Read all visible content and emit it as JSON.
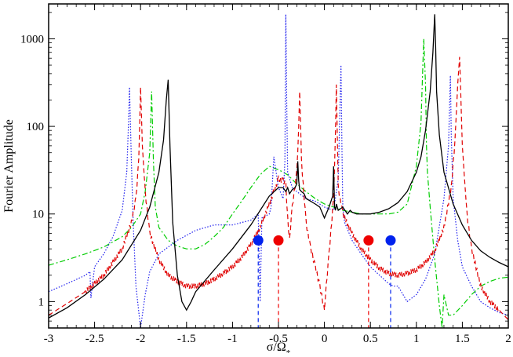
{
  "chart_data": {
    "type": "line",
    "xlabel": "σ/Ω*",
    "xlabel_main": "σ/Ω",
    "xlabel_sub": "*",
    "ylabel": "Fourier Amplitude",
    "yscale": "log",
    "xlim": [
      -3,
      2
    ],
    "ylim": [
      0.5,
      2500
    ],
    "x_ticks": [
      -3,
      -2.5,
      -2,
      -1.5,
      -1,
      -0.5,
      0,
      0.5,
      1,
      1.5,
      2
    ],
    "x_tick_labels": [
      "-3",
      "-2.5",
      "-2",
      "-1.5",
      "-1",
      "-0.5",
      "0",
      "0.5",
      "1",
      "1.5",
      "2"
    ],
    "y_ticks": [
      1,
      10,
      100,
      1000
    ],
    "y_tick_labels": [
      "1",
      "10",
      "100",
      "1000"
    ],
    "grid": false,
    "series": [
      {
        "style": "solid",
        "color": "#000000",
        "x": [
          -3,
          -2.8,
          -2.6,
          -2.4,
          -2.2,
          -2.0,
          -1.9,
          -1.8,
          -1.75,
          -1.72,
          -1.7,
          -1.68,
          -1.65,
          -1.6,
          -1.55,
          -1.5,
          -1.45,
          -1.4,
          -1.2,
          -1.0,
          -0.8,
          -0.6,
          -0.5,
          -0.45,
          -0.42,
          -0.4,
          -0.38,
          -0.35,
          -0.32,
          -0.3,
          -0.29,
          -0.28,
          -0.27,
          -0.25,
          -0.22,
          -0.2,
          -0.15,
          -0.1,
          -0.05,
          0.0,
          0.05,
          0.09,
          0.1,
          0.11,
          0.12,
          0.13,
          0.15,
          0.2,
          0.25,
          0.28,
          0.3,
          0.35,
          0.4,
          0.5,
          0.6,
          0.7,
          0.8,
          0.9,
          1.0,
          1.05,
          1.1,
          1.15,
          1.18,
          1.2,
          1.21,
          1.22,
          1.25,
          1.3,
          1.4,
          1.5,
          1.6,
          1.7,
          1.8,
          1.9,
          2.0
        ],
        "y": [
          0.65,
          0.85,
          1.2,
          1.8,
          3.0,
          6.5,
          12,
          30,
          70,
          200,
          340,
          60,
          8,
          2.0,
          1.0,
          0.8,
          1.0,
          1.3,
          2.3,
          4.0,
          7.5,
          16,
          20,
          20,
          18,
          20,
          17,
          19,
          20,
          22,
          40,
          24,
          19,
          18,
          17,
          15,
          14,
          13,
          12,
          9,
          12,
          16,
          35,
          12,
          11,
          13,
          11,
          12,
          10,
          11,
          10.5,
          10,
          10,
          10,
          10.5,
          11.5,
          13.5,
          18,
          30,
          45,
          90,
          250,
          700,
          1900,
          800,
          250,
          80,
          30,
          13,
          7.5,
          5.0,
          3.8,
          3.2,
          2.8,
          2.5
        ]
      },
      {
        "style": "dashed",
        "color": "#e00000",
        "noisy": true,
        "x": [
          -3,
          -2.8,
          -2.6,
          -2.4,
          -2.2,
          -2.1,
          -2.05,
          -2.02,
          -2.0,
          -1.98,
          -1.95,
          -1.9,
          -1.8,
          -1.7,
          -1.6,
          -1.5,
          -1.4,
          -1.3,
          -1.2,
          -1.1,
          -1.0,
          -0.9,
          -0.8,
          -0.7,
          -0.6,
          -0.55,
          -0.5,
          -0.45,
          -0.42,
          -0.4,
          -0.38,
          -0.35,
          -0.3,
          -0.28,
          -0.27,
          -0.26,
          -0.25,
          -0.2,
          -0.15,
          -0.1,
          -0.05,
          0.0,
          0.02,
          0.05,
          0.1,
          0.12,
          0.13,
          0.14,
          0.15,
          0.2,
          0.3,
          0.4,
          0.5,
          0.6,
          0.7,
          0.8,
          0.9,
          1.0,
          1.1,
          1.2,
          1.3,
          1.38,
          1.42,
          1.45,
          1.47,
          1.48,
          1.5,
          1.55,
          1.6,
          1.7,
          1.8,
          1.9,
          2.0
        ],
        "y": [
          0.7,
          0.95,
          1.3,
          2.0,
          4.0,
          8.0,
          15,
          40,
          280,
          60,
          18,
          6.0,
          3.0,
          2.0,
          1.7,
          1.5,
          1.5,
          1.6,
          1.8,
          2.1,
          2.5,
          3.2,
          4.5,
          7.0,
          13,
          18,
          25,
          24,
          22,
          9,
          5,
          12,
          30,
          100,
          250,
          120,
          40,
          8,
          4.0,
          2.5,
          1.5,
          0.8,
          1.5,
          3.5,
          15,
          90,
          300,
          80,
          20,
          10,
          6,
          4.0,
          3.0,
          2.4,
          2.1,
          2.0,
          2.1,
          2.3,
          2.8,
          3.8,
          7.0,
          20,
          70,
          300,
          620,
          300,
          60,
          10,
          4.0,
          1.5,
          1.0,
          0.8,
          0.62
        ]
      },
      {
        "style": "dotted",
        "color": "#2020ee",
        "x": [
          -3,
          -2.8,
          -2.6,
          -2.55,
          -2.54,
          -2.5,
          -2.4,
          -2.3,
          -2.2,
          -2.15,
          -2.13,
          -2.12,
          -2.1,
          -2.08,
          -2.05,
          -2.0,
          -1.95,
          -1.9,
          -1.8,
          -1.6,
          -1.4,
          -1.2,
          -1.0,
          -0.9,
          -0.8,
          -0.72,
          -0.7,
          -0.68,
          -0.6,
          -0.58,
          -0.55,
          -0.5,
          -0.45,
          -0.43,
          -0.42,
          -0.41,
          -0.4,
          -0.35,
          -0.3,
          -0.2,
          -0.1,
          0.0,
          0.1,
          0.15,
          0.18,
          0.19,
          0.2,
          0.22,
          0.3,
          0.4,
          0.5,
          0.6,
          0.7,
          0.75,
          0.8,
          0.9,
          1.0,
          1.1,
          1.2,
          1.3,
          1.35,
          1.37,
          1.38,
          1.4,
          1.45,
          1.5,
          1.6,
          1.7,
          1.8,
          1.9,
          2.0
        ],
        "y": [
          1.3,
          1.6,
          2.0,
          2.2,
          1.1,
          2.5,
          3.5,
          5.5,
          11,
          30,
          120,
          280,
          40,
          8,
          1.5,
          0.5,
          1.2,
          2.2,
          3.5,
          5.0,
          6.5,
          7.5,
          7.5,
          8.0,
          8.5,
          10,
          1.0,
          9,
          10,
          12,
          45,
          20,
          15,
          40,
          1900,
          200,
          30,
          20,
          18,
          15,
          14,
          12,
          11,
          25,
          500,
          60,
          12,
          8,
          5,
          3.5,
          2.5,
          2.0,
          1.6,
          1.5,
          1.5,
          1.0,
          1.2,
          1.8,
          3.5,
          15,
          60,
          380,
          80,
          15,
          5.0,
          2.5,
          1.5,
          1.0,
          0.85,
          0.75,
          0.7
        ]
      },
      {
        "style": "dashdot",
        "color": "#00cc00",
        "x": [
          -3,
          -2.8,
          -2.6,
          -2.4,
          -2.2,
          -2.1,
          -2.0,
          -1.95,
          -1.9,
          -1.88,
          -1.86,
          -1.84,
          -1.8,
          -1.7,
          -1.6,
          -1.5,
          -1.4,
          -1.3,
          -1.2,
          -1.1,
          -1.0,
          -0.9,
          -0.8,
          -0.7,
          -0.6,
          -0.5,
          -0.45,
          -0.4,
          -0.3,
          -0.2,
          -0.1,
          0.0,
          0.1,
          0.2,
          0.3,
          0.4,
          0.5,
          0.6,
          0.7,
          0.8,
          0.9,
          1.0,
          1.05,
          1.08,
          1.1,
          1.11,
          1.12,
          1.15,
          1.2,
          1.25,
          1.28,
          1.3,
          1.35,
          1.4,
          1.5,
          1.6,
          1.7,
          1.8,
          1.9,
          2.0
        ],
        "y": [
          2.6,
          3.0,
          3.5,
          4.2,
          5.5,
          7.0,
          10,
          18,
          50,
          250,
          40,
          12,
          7.0,
          5.0,
          4.3,
          4.0,
          4.0,
          4.5,
          5.5,
          7.0,
          10,
          14,
          20,
          28,
          35,
          32,
          30,
          28,
          22,
          18,
          15,
          13,
          12,
          11,
          10.5,
          10,
          10,
          10,
          10,
          10.5,
          13,
          35,
          110,
          1000,
          300,
          60,
          30,
          12,
          3.0,
          0.9,
          0.5,
          1.2,
          0.7,
          0.7,
          0.9,
          1.2,
          1.5,
          1.7,
          1.85,
          1.9
        ]
      }
    ],
    "markers": [
      {
        "x": -0.72,
        "y": 5.0,
        "color": "#0022ee"
      },
      {
        "x": -0.5,
        "y": 5.0,
        "color": "#ee0000"
      },
      {
        "x": 0.48,
        "y": 5.0,
        "color": "#ee0000"
      },
      {
        "x": 0.72,
        "y": 5.0,
        "color": "#0022ee"
      }
    ],
    "marker_drop_lines": true
  }
}
